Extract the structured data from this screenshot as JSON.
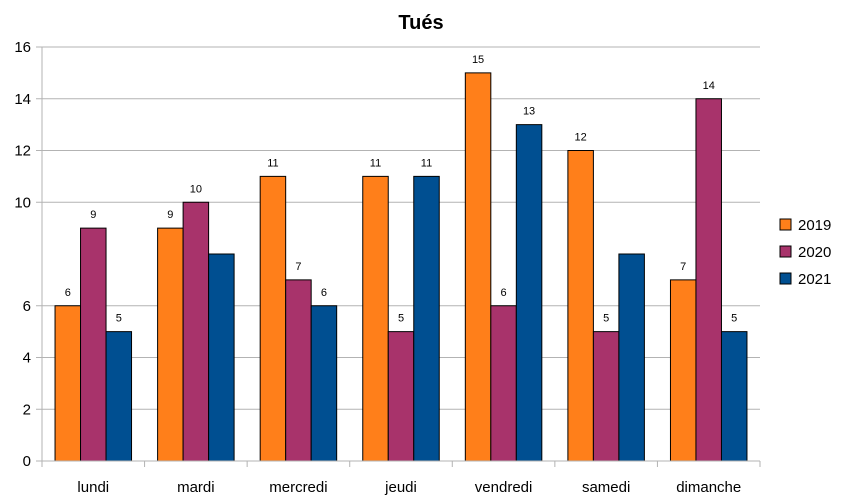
{
  "chart_data": {
    "type": "bar",
    "title": "Tués",
    "xlabel": "",
    "ylabel": "",
    "ylim": [
      0,
      16
    ],
    "yticks": [
      0,
      2,
      4,
      6,
      10,
      12,
      14,
      16
    ],
    "grid": true,
    "legend_position": "right",
    "categories": [
      "lundi",
      "mardi",
      "mercredi",
      "jeudi",
      "vendredi",
      "samedi",
      "dimanche"
    ],
    "series": [
      {
        "name": "2019",
        "color": "#ff7f1a",
        "values": [
          6,
          9,
          11,
          11,
          15,
          12,
          7
        ],
        "labels": [
          "6",
          "9",
          "11",
          "11",
          "15",
          "12",
          "7"
        ]
      },
      {
        "name": "2020",
        "color": "#a8336b",
        "values": [
          9,
          10,
          7,
          5,
          6,
          5,
          14
        ],
        "labels": [
          "9",
          "10",
          "7",
          "5",
          "6",
          "5",
          "14"
        ]
      },
      {
        "name": "2021",
        "color": "#004f91",
        "values": [
          5,
          8,
          6,
          11,
          13,
          8,
          5
        ],
        "labels": [
          "5",
          "",
          "6",
          "11",
          "13",
          "",
          "5"
        ]
      }
    ]
  }
}
